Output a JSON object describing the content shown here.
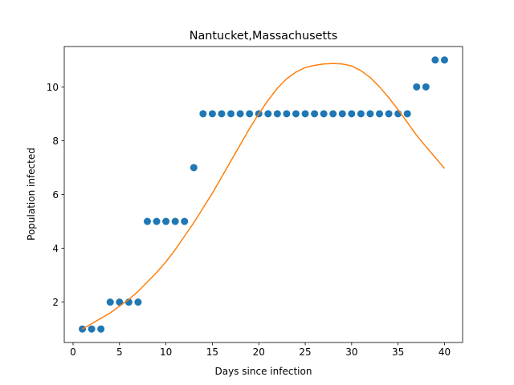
{
  "chart_data": {
    "type": "scatter",
    "title": "Nantucket,Massachusetts",
    "xlabel": "Days since infection",
    "ylabel": "Population infected",
    "xlim": [
      -0.95,
      41.95
    ],
    "ylim": [
      0.5,
      11.5
    ],
    "xticks": [
      0,
      5,
      10,
      15,
      20,
      25,
      30,
      35,
      40
    ],
    "yticks": [
      2,
      4,
      6,
      8,
      10
    ],
    "grid": false,
    "series": [
      {
        "kind": "scatter",
        "color": "#1f77b4",
        "x": [
          1,
          2,
          3,
          4,
          5,
          6,
          7,
          8,
          9,
          10,
          11,
          12,
          13,
          14,
          15,
          16,
          17,
          18,
          19,
          20,
          21,
          22,
          23,
          24,
          25,
          26,
          27,
          28,
          29,
          30,
          31,
          32,
          33,
          34,
          35,
          36,
          37,
          38,
          39,
          40
        ],
        "y": [
          1,
          1,
          1,
          2,
          2,
          2,
          2,
          5,
          5,
          5,
          5,
          5,
          7,
          9,
          9,
          9,
          9,
          9,
          9,
          9,
          9,
          9,
          9,
          9,
          9,
          9,
          9,
          9,
          9,
          9,
          9,
          9,
          9,
          9,
          9,
          9,
          10,
          10,
          11,
          11
        ]
      },
      {
        "kind": "line",
        "color": "#ff7f0e",
        "x": [
          1,
          2,
          3,
          4,
          5,
          6,
          7,
          8,
          9,
          10,
          11,
          12,
          13,
          14,
          15,
          16,
          17,
          18,
          19,
          20,
          21,
          22,
          23,
          24,
          25,
          26,
          27,
          28,
          29,
          30,
          31,
          32,
          33,
          34,
          35,
          36,
          37,
          38,
          39,
          40
        ],
        "y": [
          1.0,
          1.2,
          1.4,
          1.6,
          1.85,
          2.1,
          2.4,
          2.75,
          3.1,
          3.5,
          3.95,
          4.45,
          4.95,
          5.5,
          6.05,
          6.65,
          7.25,
          7.85,
          8.45,
          9.0,
          9.5,
          9.95,
          10.3,
          10.55,
          10.72,
          10.8,
          10.85,
          10.87,
          10.85,
          10.78,
          10.6,
          10.35,
          10.0,
          9.6,
          9.15,
          8.68,
          8.2,
          7.78,
          7.38,
          6.97
        ]
      }
    ]
  }
}
